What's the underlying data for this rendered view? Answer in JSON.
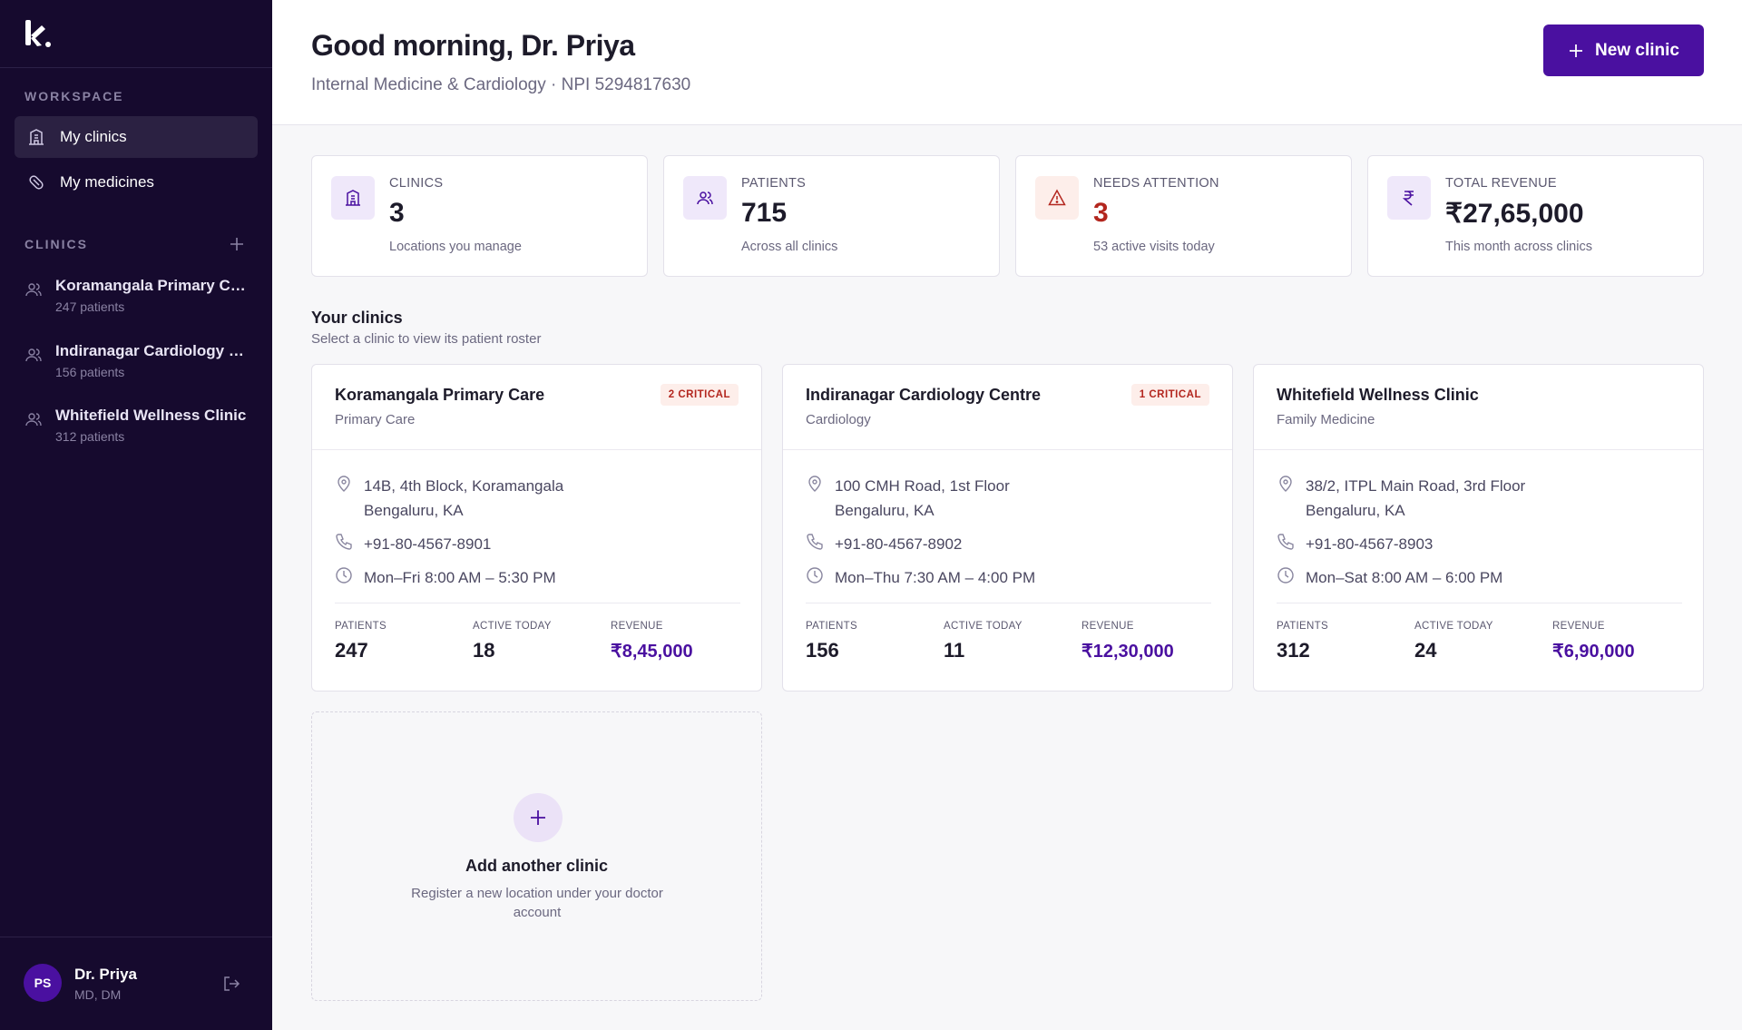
{
  "brand": {
    "logo_letter": "k"
  },
  "sidebar": {
    "workspace_label": "WORKSPACE",
    "nav": [
      {
        "label": "My clinics",
        "icon": "building-icon",
        "active": true
      },
      {
        "label": "My medicines",
        "icon": "pill-icon",
        "active": false
      }
    ],
    "clinics_label": "CLINICS",
    "clinics": [
      {
        "name": "Koramangala Primary Care",
        "patients": "247 patients"
      },
      {
        "name": "Indiranagar Cardiology Centre",
        "patients": "156 patients"
      },
      {
        "name": "Whitefield Wellness Clinic",
        "patients": "312 patients"
      }
    ],
    "user": {
      "initials": "PS",
      "name": "Dr. Priya",
      "credentials": "MD, DM"
    }
  },
  "header": {
    "greeting": "Good morning, Dr. Priya",
    "specialty": "Internal Medicine & Cardiology · NPI 5294817630",
    "new_clinic_label": "New clinic"
  },
  "stats": [
    {
      "label": "CLINICS",
      "value": "3",
      "sub": "Locations you manage",
      "icon": "building-icon"
    },
    {
      "label": "PATIENTS",
      "value": "715",
      "sub": "Across all clinics",
      "icon": "users-icon"
    },
    {
      "label": "NEEDS ATTENTION",
      "value": "3",
      "sub": "53 active visits today",
      "icon": "warning-icon"
    },
    {
      "label": "TOTAL REVENUE",
      "value": "₹27,65,000",
      "sub": "This month across clinics",
      "icon": "rupee-icon"
    }
  ],
  "section": {
    "title": "Your clinics",
    "subtitle": "Select a clinic to view its patient roster"
  },
  "clinic_cards": [
    {
      "name": "Koramangala Primary Care",
      "type": "Primary Care",
      "badge": "2 CRITICAL",
      "address1": "14B, 4th Block, Koramangala",
      "address2": "Bengaluru, KA",
      "phone": "+91-80-4567-8901",
      "hours": "Mon–Fri 8:00 AM – 5:30 PM",
      "patients_label": "PATIENTS",
      "patients": "247",
      "active_label": "ACTIVE TODAY",
      "active": "18",
      "revenue_label": "REVENUE",
      "revenue": "₹8,45,000"
    },
    {
      "name": "Indiranagar Cardiology Centre",
      "type": "Cardiology",
      "badge": "1 CRITICAL",
      "address1": "100 CMH Road, 1st Floor",
      "address2": "Bengaluru, KA",
      "phone": "+91-80-4567-8902",
      "hours": "Mon–Thu 7:30 AM – 4:00 PM",
      "patients_label": "PATIENTS",
      "patients": "156",
      "active_label": "ACTIVE TODAY",
      "active": "11",
      "revenue_label": "REVENUE",
      "revenue": "₹12,30,000"
    },
    {
      "name": "Whitefield Wellness Clinic",
      "type": "Family Medicine",
      "badge": "",
      "address1": "38/2, ITPL Main Road, 3rd Floor",
      "address2": "Bengaluru, KA",
      "phone": "+91-80-4567-8903",
      "hours": "Mon–Sat 8:00 AM – 6:00 PM",
      "patients_label": "PATIENTS",
      "patients": "312",
      "active_label": "ACTIVE TODAY",
      "active": "24",
      "revenue_label": "REVENUE",
      "revenue": "₹6,90,000"
    }
  ],
  "add_card": {
    "title": "Add another clinic",
    "subtitle": "Register a new location under your doctor account"
  },
  "colors": {
    "sidebar_bg": "#160a2e",
    "accent": "#4a10a0",
    "critical": "#b3261e"
  }
}
